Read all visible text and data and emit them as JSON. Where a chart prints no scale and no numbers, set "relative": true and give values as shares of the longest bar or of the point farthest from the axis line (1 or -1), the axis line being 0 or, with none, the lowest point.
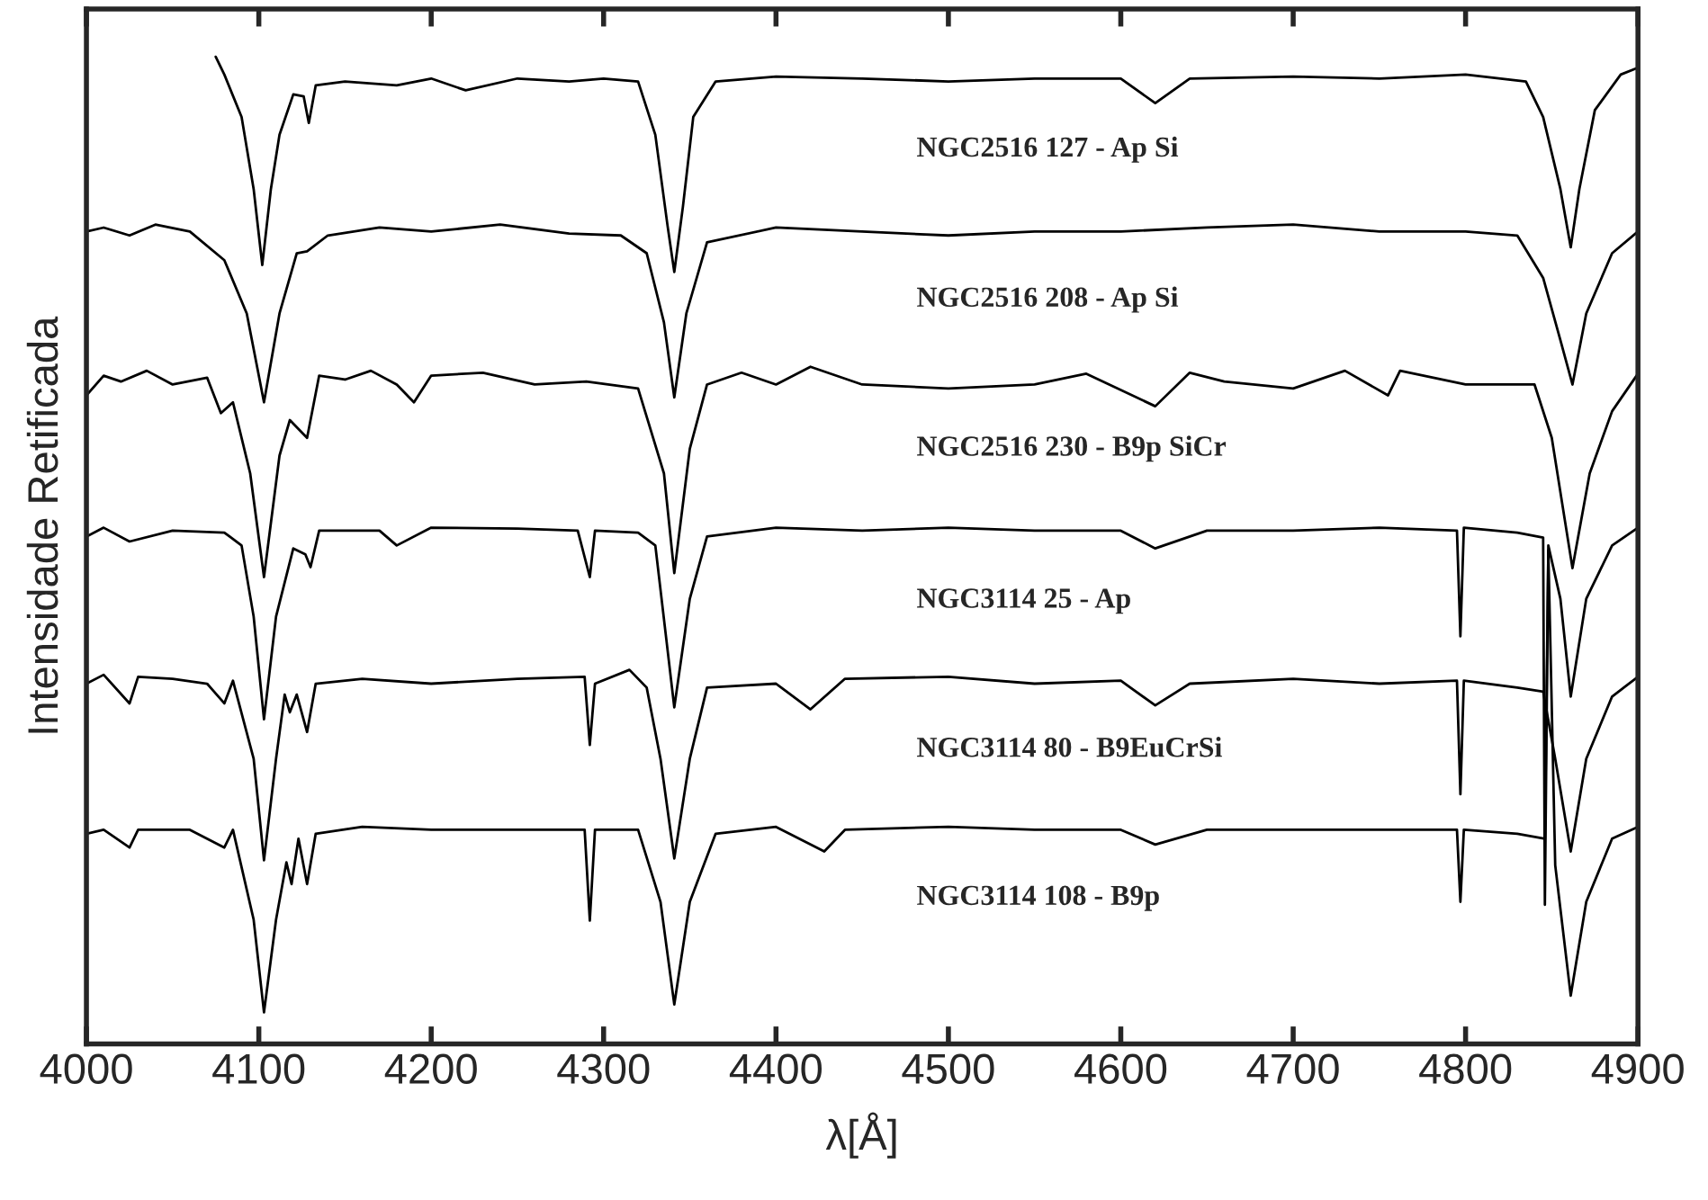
{
  "chart_data": {
    "type": "line",
    "relative": true,
    "xlabel": "λ[Å]",
    "ylabel": "Intensidade Retificada",
    "xlim": [
      4000,
      4900
    ],
    "xticks": [
      4000,
      4100,
      4200,
      4300,
      4400,
      4500,
      4600,
      4700,
      4800,
      4900
    ],
    "tick_labels": "x",
    "grid": false,
    "legend": false,
    "marker": "none",
    "line_style": "solid",
    "series": [
      {
        "name": "NGC2516 127 - Ap Si",
        "color": "#000000",
        "x": [
          4075,
          4080,
          4090,
          4097,
          4102,
          4107,
          4112,
          4120,
          4126,
          4129,
          4133,
          4150,
          4180,
          4200,
          4220,
          4250,
          4280,
          4300,
          4320,
          4330,
          4337,
          4341,
          4346,
          4352,
          4365,
          4400,
          4450,
          4500,
          4550,
          4600,
          4620,
          4640,
          4700,
          4750,
          4800,
          4835,
          4845,
          4855,
          4861,
          4866,
          4875,
          4890,
          4900
        ],
        "values": [
          1.0,
          0.982,
          0.939,
          0.866,
          0.789,
          0.866,
          0.921,
          0.962,
          0.96,
          0.933,
          0.971,
          0.975,
          0.971,
          0.978,
          0.966,
          0.978,
          0.975,
          0.978,
          0.975,
          0.921,
          0.83,
          0.782,
          0.848,
          0.939,
          0.975,
          0.98,
          0.978,
          0.975,
          0.978,
          0.978,
          0.953,
          0.978,
          0.98,
          0.978,
          0.982,
          0.975,
          0.939,
          0.866,
          0.807,
          0.866,
          0.946,
          0.982,
          0.989
        ]
      },
      {
        "name": "NGC2516 208 - Ap Si",
        "color": "#000000",
        "x": [
          4000,
          4010,
          4025,
          4040,
          4060,
          4080,
          4093,
          4103,
          4112,
          4122,
          4128,
          4140,
          4170,
          4200,
          4240,
          4280,
          4310,
          4325,
          4335,
          4341,
          4348,
          4360,
          4400,
          4450,
          4500,
          4550,
          4600,
          4650,
          4700,
          4750,
          4800,
          4830,
          4845,
          4855,
          4862,
          4870,
          4885,
          4900
        ],
        "values": [
          0.823,
          0.827,
          0.819,
          0.83,
          0.823,
          0.794,
          0.74,
          0.65,
          0.74,
          0.801,
          0.803,
          0.819,
          0.827,
          0.823,
          0.83,
          0.821,
          0.819,
          0.801,
          0.731,
          0.655,
          0.74,
          0.812,
          0.827,
          0.823,
          0.819,
          0.823,
          0.823,
          0.827,
          0.83,
          0.823,
          0.823,
          0.819,
          0.776,
          0.713,
          0.668,
          0.74,
          0.801,
          0.823
        ]
      },
      {
        "name": "NGC2516 230 - B9p SiCr",
        "color": "#000000",
        "x": [
          4000,
          4010,
          4020,
          4035,
          4050,
          4070,
          4078,
          4085,
          4095,
          4103,
          4112,
          4118,
          4128,
          4135,
          4150,
          4165,
          4180,
          4190,
          4200,
          4230,
          4260,
          4290,
          4320,
          4335,
          4341,
          4350,
          4360,
          4380,
          4400,
          4420,
          4450,
          4500,
          4550,
          4580,
          4620,
          4640,
          4660,
          4700,
          4730,
          4755,
          4762,
          4800,
          4840,
          4850,
          4862,
          4872,
          4885,
          4900
        ],
        "values": [
          0.657,
          0.677,
          0.671,
          0.682,
          0.668,
          0.675,
          0.639,
          0.65,
          0.578,
          0.473,
          0.596,
          0.632,
          0.614,
          0.677,
          0.673,
          0.682,
          0.668,
          0.65,
          0.677,
          0.68,
          0.668,
          0.671,
          0.664,
          0.578,
          0.477,
          0.603,
          0.668,
          0.68,
          0.668,
          0.686,
          0.668,
          0.664,
          0.668,
          0.679,
          0.646,
          0.68,
          0.671,
          0.664,
          0.682,
          0.657,
          0.682,
          0.668,
          0.668,
          0.614,
          0.482,
          0.578,
          0.641,
          0.679
        ]
      },
      {
        "name": "NGC3114 25 - Ap",
        "color": "#000000",
        "x": [
          4000,
          4010,
          4025,
          4050,
          4080,
          4090,
          4097,
          4103,
          4110,
          4120,
          4127,
          4130,
          4135,
          4170,
          4180,
          4200,
          4250,
          4285,
          4292,
          4295,
          4320,
          4330,
          4341,
          4350,
          4360,
          4400,
          4450,
          4500,
          4550,
          4600,
          4620,
          4650,
          4700,
          4750,
          4795,
          4797,
          4799,
          4830,
          4845,
          4846,
          4848,
          4855,
          4861,
          4870,
          4885,
          4900
        ],
        "values": [
          0.514,
          0.523,
          0.509,
          0.52,
          0.518,
          0.505,
          0.433,
          0.329,
          0.433,
          0.502,
          0.496,
          0.483,
          0.52,
          0.52,
          0.505,
          0.523,
          0.522,
          0.52,
          0.473,
          0.52,
          0.518,
          0.505,
          0.341,
          0.451,
          0.514,
          0.523,
          0.52,
          0.523,
          0.52,
          0.52,
          0.502,
          0.52,
          0.52,
          0.523,
          0.52,
          0.413,
          0.523,
          0.518,
          0.513,
          0.141,
          0.505,
          0.451,
          0.352,
          0.451,
          0.505,
          0.523
        ]
      },
      {
        "name": "NGC3114 80 - B9EuCrSi",
        "color": "#000000",
        "x": [
          4000,
          4010,
          4025,
          4030,
          4050,
          4070,
          4080,
          4085,
          4097,
          4103,
          4110,
          4115,
          4118,
          4122,
          4128,
          4133,
          4160,
          4200,
          4250,
          4289,
          4292,
          4295,
          4315,
          4325,
          4333,
          4341,
          4350,
          4360,
          4400,
          4420,
          4440,
          4500,
          4550,
          4600,
          4620,
          4640,
          4700,
          4750,
          4795,
          4797,
          4799,
          4830,
          4845,
          4852,
          4861,
          4870,
          4885,
          4900
        ],
        "values": [
          0.365,
          0.374,
          0.345,
          0.372,
          0.37,
          0.365,
          0.345,
          0.368,
          0.289,
          0.186,
          0.289,
          0.354,
          0.336,
          0.354,
          0.316,
          0.365,
          0.37,
          0.365,
          0.37,
          0.372,
          0.303,
          0.365,
          0.379,
          0.361,
          0.289,
          0.188,
          0.289,
          0.361,
          0.365,
          0.339,
          0.37,
          0.372,
          0.365,
          0.368,
          0.343,
          0.365,
          0.37,
          0.365,
          0.368,
          0.253,
          0.368,
          0.361,
          0.357,
          0.289,
          0.195,
          0.289,
          0.352,
          0.372
        ]
      },
      {
        "name": "NGC3114 108 - B9p",
        "color": "#000000",
        "x": [
          4000,
          4010,
          4025,
          4030,
          4060,
          4080,
          4085,
          4097,
          4103,
          4110,
          4116,
          4119,
          4123,
          4128,
          4133,
          4160,
          4200,
          4250,
          4289,
          4292,
          4295,
          4320,
          4333,
          4341,
          4350,
          4365,
          4400,
          4428,
          4440,
          4500,
          4550,
          4600,
          4620,
          4650,
          4700,
          4750,
          4795,
          4797,
          4799,
          4830,
          4846,
          4848,
          4852,
          4861,
          4870,
          4885,
          4900
        ],
        "values": [
          0.213,
          0.217,
          0.199,
          0.217,
          0.217,
          0.199,
          0.217,
          0.126,
          0.032,
          0.126,
          0.184,
          0.162,
          0.208,
          0.162,
          0.213,
          0.22,
          0.217,
          0.217,
          0.217,
          0.125,
          0.217,
          0.217,
          0.144,
          0.04,
          0.144,
          0.213,
          0.22,
          0.195,
          0.217,
          0.22,
          0.217,
          0.217,
          0.202,
          0.217,
          0.217,
          0.217,
          0.217,
          0.144,
          0.217,
          0.213,
          0.208,
          0.5,
          0.181,
          0.049,
          0.144,
          0.208,
          0.22
        ]
      }
    ]
  }
}
